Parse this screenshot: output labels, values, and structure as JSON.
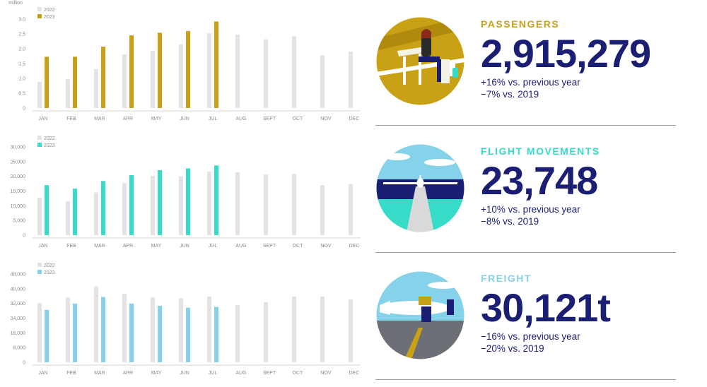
{
  "colors": {
    "gray": "#e3e3e3",
    "gold": "#c9a114",
    "teal": "#36dcc8",
    "blue": "#86d2ea",
    "navy": "#1b1f74"
  },
  "passengers": {
    "label": "PASSENGERS",
    "label_color": "#c9a114",
    "value": "2,915,279",
    "change_prev": "+16% vs. previous year",
    "change_2019": "−7% vs. 2019",
    "illustration_icon": "passenger-lounge-illustration"
  },
  "flights": {
    "label": "FLIGHT MOVEMENTS",
    "label_color": "#36dcc8",
    "value": "23,748",
    "change_prev": "+10% vs. previous year",
    "change_2019": "−8% vs. 2019",
    "illustration_icon": "runway-plane-illustration"
  },
  "freight": {
    "label": "FREIGHT",
    "label_color": "#86d2ea",
    "value": "30,121t",
    "change_prev": "−16% vs. previous year",
    "change_2019": "−20% vs. 2019",
    "illustration_icon": "cargo-loading-illustration"
  },
  "chart_data": [
    {
      "type": "bar",
      "unit": "million",
      "categories": [
        "JAN",
        "FEB",
        "MAR",
        "APR",
        "MAY",
        "JUN",
        "JUL",
        "AUG",
        "SEPT",
        "OCT",
        "NOV",
        "DEC"
      ],
      "yticks": [
        "0",
        "0.5",
        "1.0",
        "1.5",
        "2.0",
        "2.5",
        "3.0"
      ],
      "ylim": [
        0,
        3.0
      ],
      "series": [
        {
          "name": "2022",
          "color": "#e3e3e3",
          "values": [
            0.88,
            0.97,
            1.31,
            1.81,
            1.93,
            2.15,
            2.52,
            2.47,
            2.32,
            2.42,
            1.78,
            1.9
          ]
        },
        {
          "name": "2023",
          "color": "#c9a114",
          "values": [
            1.73,
            1.73,
            2.07,
            2.45,
            2.54,
            2.6,
            2.92,
            null,
            null,
            null,
            null,
            null
          ]
        }
      ]
    },
    {
      "type": "bar",
      "categories": [
        "JAN",
        "FEB",
        "MAR",
        "APR",
        "MAY",
        "JUN",
        "JUL",
        "AUG",
        "SEPT",
        "OCT",
        "NOV",
        "DEC"
      ],
      "yticks": [
        "0",
        "5,000",
        "10,000",
        "15,000",
        "20,000",
        "25,000",
        "30,000"
      ],
      "ylim": [
        0,
        30000
      ],
      "series": [
        {
          "name": "2022",
          "color": "#e3e3e3",
          "values": [
            12700,
            11600,
            14500,
            17800,
            20100,
            20000,
            21600,
            21300,
            20600,
            20800,
            17000,
            17400
          ]
        },
        {
          "name": "2023",
          "color": "#36dcc8",
          "values": [
            17000,
            15800,
            18400,
            20400,
            22100,
            22700,
            23700,
            null,
            null,
            null,
            null,
            null
          ]
        }
      ]
    },
    {
      "type": "bar",
      "categories": [
        "JAN",
        "FEB",
        "MAR",
        "APR",
        "MAY",
        "JUN",
        "JUL",
        "AUG",
        "SEPT",
        "OCT",
        "NOV",
        "DEC"
      ],
      "yticks": [
        "0",
        "8,000",
        "16,000",
        "24,000",
        "32,000",
        "40,000",
        "48,000"
      ],
      "ylim": [
        0,
        48000
      ],
      "series": [
        {
          "name": "2022",
          "color": "#e3e3e3",
          "values": [
            32200,
            35200,
            41200,
            37200,
            35400,
            34800,
            35800,
            31100,
            32800,
            35800,
            35800,
            34200
          ]
        },
        {
          "name": "2023",
          "color": "#86d2ea",
          "values": [
            28500,
            31900,
            35500,
            31900,
            30700,
            29700,
            30100,
            null,
            null,
            null,
            null,
            null
          ]
        }
      ]
    }
  ]
}
